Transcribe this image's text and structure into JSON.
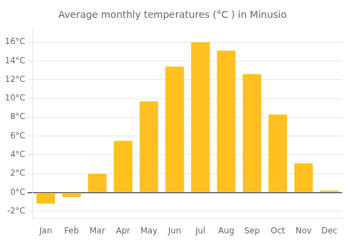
{
  "chart_data": {
    "type": "bar",
    "title": "Average monthly temperatures (°C ) in Minusio",
    "categories": [
      "Jan",
      "Feb",
      "Mar",
      "Apr",
      "May",
      "Jun",
      "Jul",
      "Aug",
      "Sep",
      "Oct",
      "Nov",
      "Dec"
    ],
    "values": [
      -1.2,
      -0.5,
      2.0,
      5.5,
      9.7,
      13.4,
      16.0,
      15.1,
      12.6,
      8.3,
      3.1,
      0.2
    ],
    "color": "#FFC020",
    "ylim": [
      -2.8,
      17.5
    ],
    "yticks": [
      {
        "value": -2,
        "label": "-2°C"
      },
      {
        "value": 0,
        "label": "0°C"
      },
      {
        "value": 2,
        "label": "2°C"
      },
      {
        "value": 4,
        "label": "4°C"
      },
      {
        "value": 6,
        "label": "6°C"
      },
      {
        "value": 8,
        "label": "8°C"
      },
      {
        "value": 10,
        "label": "10°C"
      },
      {
        "value": 12,
        "label": "12°C"
      },
      {
        "value": 14,
        "label": "14°C"
      },
      {
        "value": 16,
        "label": "16°C"
      }
    ],
    "grid": true
  }
}
